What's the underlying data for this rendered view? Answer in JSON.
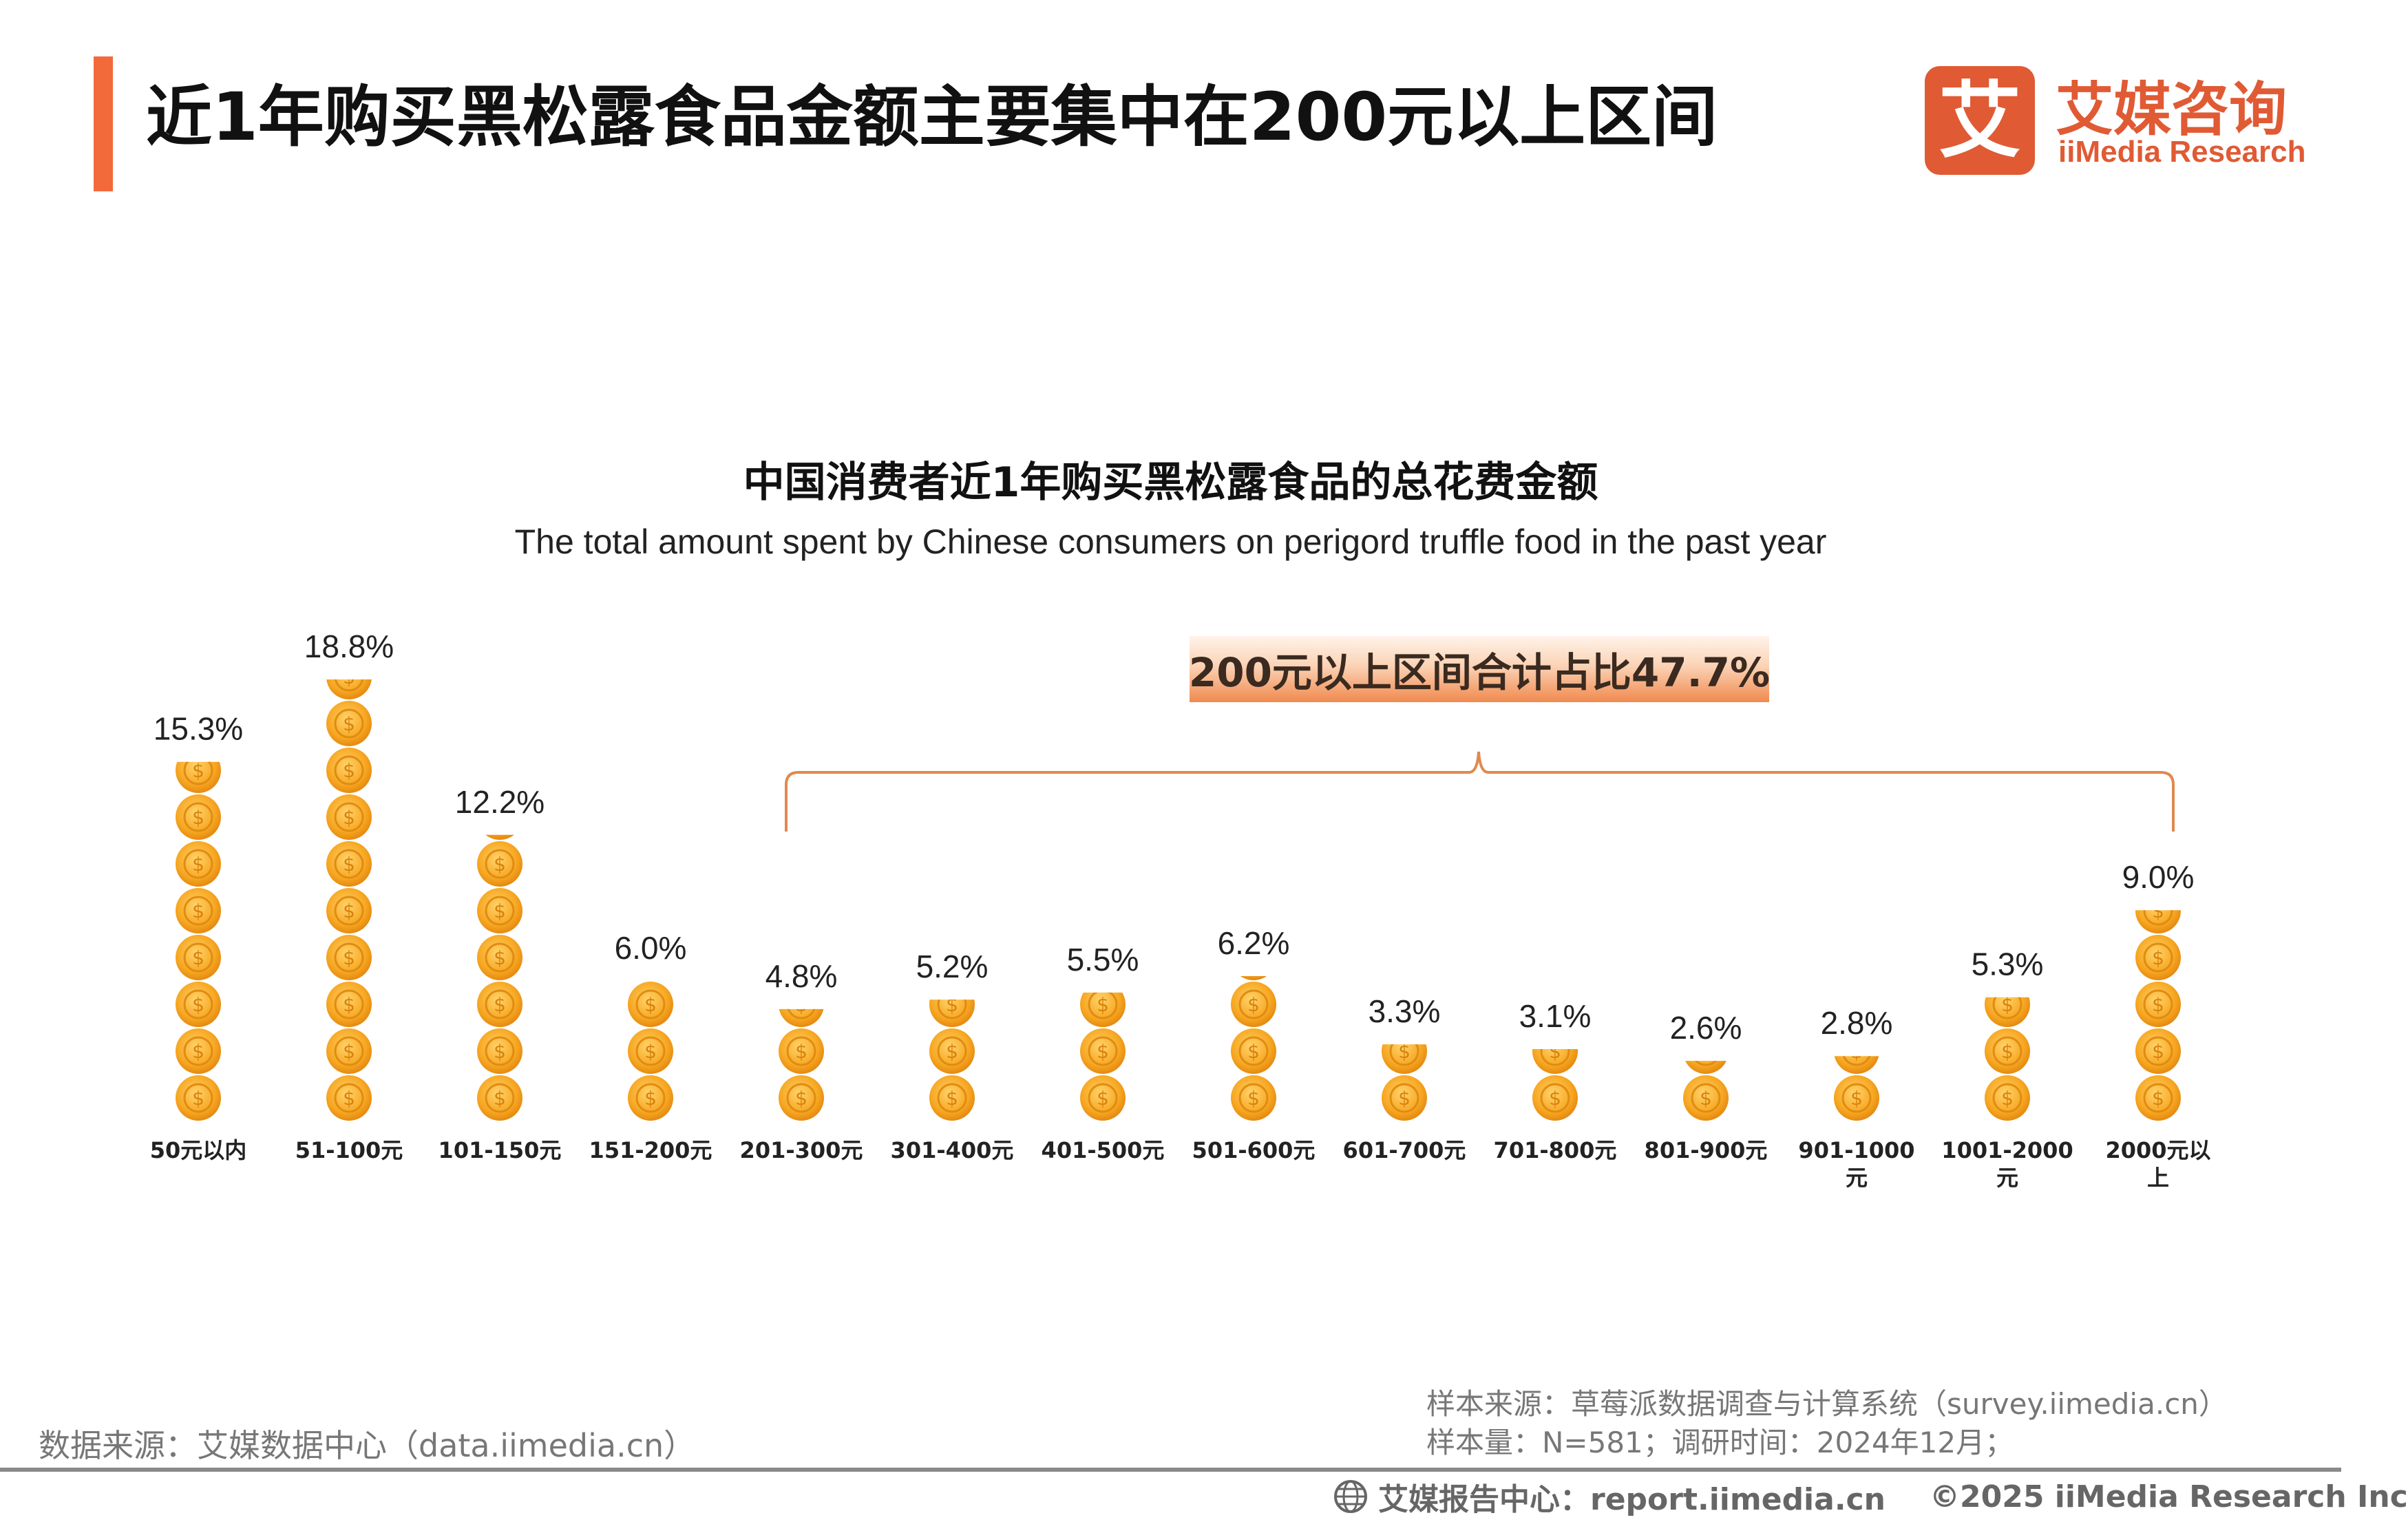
{
  "header": {
    "title": "近1年购买黑松露食品金额主要集中在200元以上区间",
    "accent_color": "#f26a3a"
  },
  "logo": {
    "glyph": "艾",
    "name_cn": "艾媒咨询",
    "name_en": "iiMedia Research",
    "color": "#e05a34"
  },
  "chart_data": {
    "type": "bar",
    "title": "中国消费者近1年购买黑松露食品的总花费金额",
    "subtitle": "The total amount spent by Chinese consumers on perigord truffle food in the past year",
    "categories": [
      "50元以内",
      "51-100元",
      "101-150元",
      "151-200元",
      "201-300元",
      "301-400元",
      "401-500元",
      "501-600元",
      "601-700元",
      "701-800元",
      "801-900元",
      "901-1000元",
      "1001-2000元",
      "2000元以上"
    ],
    "category_lines": [
      [
        "50元以内"
      ],
      [
        "51-100元"
      ],
      [
        "101-150元"
      ],
      [
        "151-200元"
      ],
      [
        "201-300元"
      ],
      [
        "301-400元"
      ],
      [
        "401-500元"
      ],
      [
        "501-600元"
      ],
      [
        "601-700元"
      ],
      [
        "701-800元"
      ],
      [
        "801-900元"
      ],
      [
        "901-1000",
        "元"
      ],
      [
        "1001-2000",
        "元"
      ],
      [
        "2000元以",
        "上"
      ]
    ],
    "values": [
      15.3,
      18.8,
      12.2,
      6.0,
      4.8,
      5.2,
      5.5,
      6.2,
      3.3,
      3.1,
      2.6,
      2.8,
      5.3,
      9.0
    ],
    "value_labels": [
      "15.3%",
      "18.8%",
      "12.2%",
      "6.0%",
      "4.8%",
      "5.2%",
      "5.5%",
      "6.2%",
      "3.3%",
      "3.1%",
      "2.6%",
      "2.8%",
      "5.3%",
      "9.0%"
    ],
    "unit": "%",
    "mark": "stacked-coins",
    "coin_symbol": "$",
    "coin_color": "#f7a722",
    "coin_highlight": "#ffd36b",
    "annotation": {
      "text": "200元以上区间合计占比47.7%",
      "bracket_from": "201-300元",
      "bracket_to": "2000元以上",
      "bracket_color": "#e0894f"
    },
    "grid": false,
    "legend": "none"
  },
  "footer": {
    "source_left": "数据来源：艾媒数据中心（data.iimedia.cn）",
    "sample_source": "样本来源：草莓派数据调查与计算系统（survey.iimedia.cn）",
    "sample_info": "样本量：N=581；调研时间：2024年12月；",
    "report_center": "艾媒报告中心：report.iimedia.cn",
    "copyright": "©2025  iiMedia Research  Inc"
  }
}
